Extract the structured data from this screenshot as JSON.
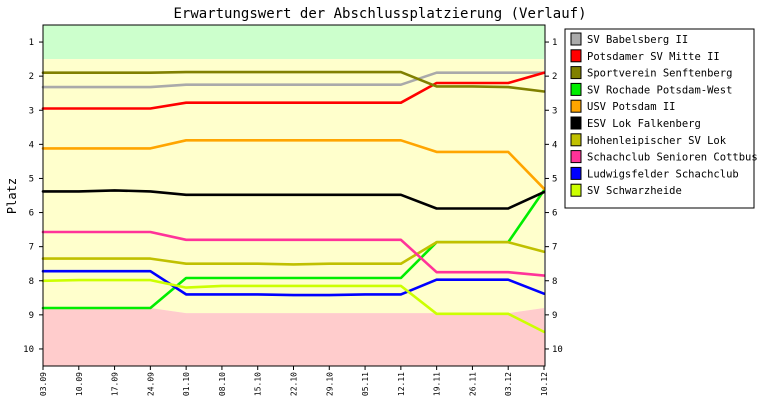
{
  "chart_data": {
    "type": "line",
    "title": "Erwartungswert der Abschlussplatzierung (Verlauf)",
    "xlabel": "",
    "ylabel": "Platz",
    "ylim": [
      0.5,
      10.5
    ],
    "y_inverted": true,
    "yticks": [
      1,
      2,
      3,
      4,
      5,
      6,
      7,
      8,
      9,
      10
    ],
    "categories": [
      "03.09",
      "10.09",
      "17.09",
      "24.09",
      "01.10",
      "08.10",
      "15.10",
      "22.10",
      "29.10",
      "05.11",
      "12.11",
      "19.11",
      "26.11",
      "03.12",
      "10.12"
    ],
    "bands": [
      {
        "from": 0.5,
        "to": 1.5,
        "color": "#ccffcc"
      },
      {
        "from": 1.5,
        "to": 8.95,
        "color": "#ffffcc"
      },
      {
        "from": 8.95,
        "to": 10.5,
        "color": "#ffcccc"
      }
    ],
    "band_boundaries": {
      "top": [
        1.5,
        1.5,
        1.5,
        1.5,
        1.5,
        1.5,
        1.5,
        1.5,
        1.5,
        1.5,
        1.5,
        1.5,
        1.5,
        1.5,
        1.5
      ],
      "bottom": [
        8.8,
        8.8,
        8.8,
        8.8,
        8.95,
        8.95,
        8.95,
        8.95,
        8.95,
        8.95,
        8.95,
        8.95,
        8.95,
        8.95,
        8.8
      ]
    },
    "grid": false,
    "legend": "right",
    "series": [
      {
        "name": "SV Babelsberg II",
        "color": "#aaaaaa",
        "values": [
          2.32,
          2.32,
          2.32,
          2.32,
          2.25,
          2.25,
          2.25,
          2.25,
          2.25,
          2.25,
          2.25,
          1.9,
          1.9,
          1.9,
          1.9
        ]
      },
      {
        "name": "Potsdamer SV Mitte II",
        "color": "#ff0000",
        "values": [
          2.95,
          2.95,
          2.95,
          2.95,
          2.78,
          2.78,
          2.78,
          2.78,
          2.78,
          2.78,
          2.78,
          2.2,
          2.2,
          2.2,
          1.9
        ]
      },
      {
        "name": "Sportverein Senftenberg",
        "color": "#808000",
        "values": [
          1.9,
          1.9,
          1.9,
          1.9,
          1.88,
          1.88,
          1.88,
          1.88,
          1.88,
          1.88,
          1.88,
          2.3,
          2.3,
          2.32,
          2.45
        ]
      },
      {
        "name": "SV Rochade Potsdam-West",
        "color": "#00ee00",
        "values": [
          8.8,
          8.8,
          8.8,
          8.8,
          7.92,
          7.92,
          7.92,
          7.92,
          7.92,
          7.92,
          7.92,
          6.87,
          6.87,
          6.87,
          5.35
        ]
      },
      {
        "name": "USV Potsdam II",
        "color": "#ffa500",
        "values": [
          4.12,
          4.12,
          4.12,
          4.12,
          3.88,
          3.88,
          3.88,
          3.88,
          3.88,
          3.88,
          3.88,
          4.22,
          4.22,
          4.22,
          5.3
        ]
      },
      {
        "name": "ESV Lok Falkenberg",
        "color": "#000000",
        "values": [
          5.38,
          5.38,
          5.35,
          5.38,
          5.48,
          5.48,
          5.48,
          5.48,
          5.48,
          5.48,
          5.48,
          5.88,
          5.88,
          5.88,
          5.4
        ]
      },
      {
        "name": "Hohenleipischer SV Lok",
        "color": "#c0c000",
        "values": [
          7.35,
          7.35,
          7.35,
          7.35,
          7.5,
          7.5,
          7.5,
          7.52,
          7.5,
          7.5,
          7.5,
          6.87,
          6.87,
          6.87,
          7.15
        ]
      },
      {
        "name": "Schachclub Senioren Cottbus",
        "color": "#ff3399",
        "values": [
          6.57,
          6.57,
          6.57,
          6.57,
          6.8,
          6.8,
          6.8,
          6.8,
          6.8,
          6.8,
          6.8,
          7.75,
          7.75,
          7.75,
          7.85
        ]
      },
      {
        "name": "Ludwigsfelder Schachclub",
        "color": "#0000ff",
        "values": [
          7.72,
          7.72,
          7.72,
          7.72,
          8.4,
          8.4,
          8.4,
          8.42,
          8.42,
          8.4,
          8.4,
          7.97,
          7.97,
          7.97,
          8.38
        ]
      },
      {
        "name": "SV Schwarzheide",
        "color": "#ccff00",
        "values": [
          8.0,
          7.98,
          7.98,
          7.98,
          8.2,
          8.15,
          8.15,
          8.15,
          8.15,
          8.15,
          8.15,
          8.97,
          8.97,
          8.97,
          9.5
        ]
      }
    ]
  }
}
